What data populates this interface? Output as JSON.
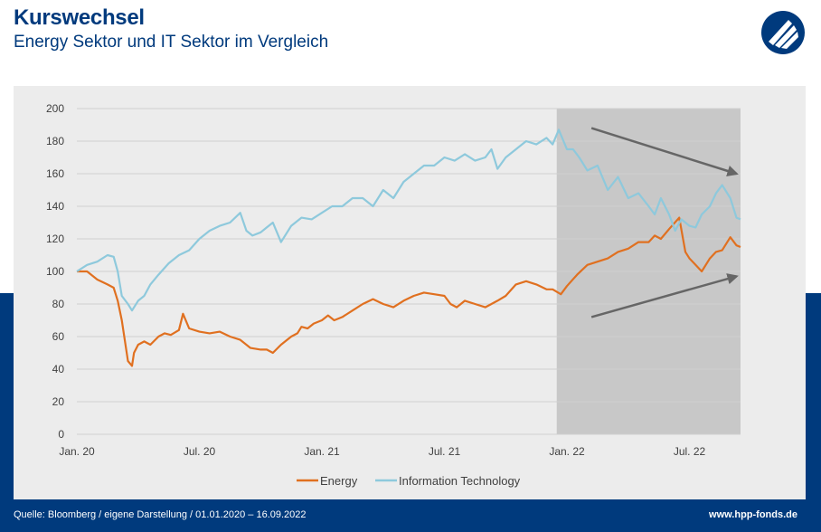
{
  "header": {
    "title": "Kurswechsel",
    "subtitle": "Energy Sektor und IT Sektor im Vergleich"
  },
  "footer": {
    "source": "Quelle: Bloomberg / eigene Darstellung / 01.01.2020 – 16.09.2022",
    "url": "www.hpp-fonds.de"
  },
  "colors": {
    "brand": "#003a7d",
    "energy": "#e07020",
    "it": "#8ec9dc",
    "highlight": "#c8c8c8",
    "arrow": "#666666"
  },
  "chart_data": {
    "type": "line",
    "title": "",
    "xlabel": "",
    "ylabel": "",
    "ylim": [
      0,
      200
    ],
    "yticks": [
      0,
      20,
      40,
      60,
      80,
      100,
      120,
      140,
      160,
      180,
      200
    ],
    "xlim": [
      0,
      32.5
    ],
    "xticks": [
      {
        "x": 0,
        "label": "Jan. 20"
      },
      {
        "x": 6,
        "label": "Jul. 20"
      },
      {
        "x": 12,
        "label": "Jan. 21"
      },
      {
        "x": 18,
        "label": "Jul. 21"
      },
      {
        "x": 24,
        "label": "Jan. 22"
      },
      {
        "x": 30,
        "label": "Jul. 22"
      }
    ],
    "x_unit": "months since Jan. 2020",
    "grid": true,
    "legend": "bottom",
    "highlight_range": [
      23.5,
      32.5
    ],
    "series": [
      {
        "name": "Energy",
        "x": [
          0,
          0.5,
          1,
          1.5,
          1.8,
          2,
          2.2,
          2.5,
          2.7,
          2.8,
          3,
          3.3,
          3.6,
          4,
          4.3,
          4.6,
          5,
          5.2,
          5.5,
          6,
          6.5,
          7,
          7.5,
          8,
          8.5,
          9,
          9.3,
          9.6,
          10,
          10.5,
          10.8,
          11,
          11.3,
          11.6,
          12,
          12.3,
          12.6,
          13,
          13.5,
          14,
          14.5,
          15,
          15.5,
          16,
          16.5,
          17,
          17.5,
          18,
          18.3,
          18.6,
          19,
          19.5,
          20,
          20.3,
          20.6,
          21,
          21.5,
          22,
          22.5,
          23,
          23.3,
          23.7,
          24,
          24.5,
          25,
          25.5,
          26,
          26.5,
          27,
          27.5,
          28,
          28.3,
          28.6,
          29,
          29.5,
          29.8,
          30,
          30.3,
          30.6,
          31,
          31.3,
          31.6,
          32,
          32.3,
          32.5
        ],
        "values": [
          100,
          100,
          95,
          92,
          90,
          82,
          70,
          45,
          42,
          50,
          55,
          57,
          55,
          60,
          62,
          61,
          64,
          74,
          65,
          63,
          62,
          63,
          60,
          58,
          53,
          52,
          52,
          50,
          55,
          60,
          62,
          66,
          65,
          68,
          70,
          73,
          70,
          72,
          76,
          80,
          83,
          80,
          78,
          82,
          85,
          87,
          86,
          85,
          80,
          78,
          82,
          80,
          78,
          80,
          82,
          85,
          92,
          94,
          92,
          89,
          89,
          86,
          91,
          98,
          104,
          106,
          108,
          112,
          114,
          118,
          118,
          122,
          120,
          126,
          133,
          112,
          108,
          104,
          100,
          108,
          112,
          113,
          121,
          116,
          115
        ]
      },
      {
        "name": "Information Technology",
        "x": [
          0,
          0.5,
          1,
          1.5,
          1.8,
          2,
          2.2,
          2.5,
          2.7,
          3,
          3.3,
          3.6,
          4,
          4.5,
          5,
          5.5,
          6,
          6.5,
          7,
          7.5,
          8,
          8.3,
          8.6,
          9,
          9.3,
          9.6,
          10,
          10.5,
          11,
          11.5,
          12,
          12.5,
          13,
          13.5,
          14,
          14.5,
          15,
          15.5,
          16,
          16.5,
          17,
          17.5,
          18,
          18.5,
          19,
          19.5,
          20,
          20.3,
          20.6,
          21,
          21.5,
          22,
          22.5,
          23,
          23.3,
          23.6,
          24,
          24.3,
          24.6,
          25,
          25.5,
          26,
          26.5,
          27,
          27.5,
          28,
          28.3,
          28.6,
          29,
          29.3,
          29.6,
          30,
          30.3,
          30.6,
          31,
          31.3,
          31.6,
          32,
          32.3,
          32.5
        ],
        "values": [
          100,
          104,
          106,
          110,
          109,
          100,
          85,
          80,
          76,
          82,
          85,
          92,
          98,
          105,
          110,
          113,
          120,
          125,
          128,
          130,
          136,
          125,
          122,
          124,
          127,
          130,
          118,
          128,
          133,
          132,
          136,
          140,
          140,
          145,
          145,
          140,
          150,
          145,
          155,
          160,
          165,
          165,
          170,
          168,
          172,
          168,
          170,
          175,
          163,
          170,
          175,
          180,
          178,
          182,
          178,
          187,
          175,
          175,
          170,
          162,
          165,
          150,
          158,
          145,
          148,
          140,
          135,
          145,
          135,
          125,
          132,
          128,
          127,
          135,
          140,
          148,
          153,
          145,
          133,
          132
        ]
      }
    ],
    "annotations": [
      {
        "type": "arrow",
        "from": [
          25.2,
          188
        ],
        "to": [
          32.3,
          160
        ]
      },
      {
        "type": "arrow",
        "from": [
          25.2,
          72
        ],
        "to": [
          32.3,
          97
        ]
      }
    ]
  }
}
